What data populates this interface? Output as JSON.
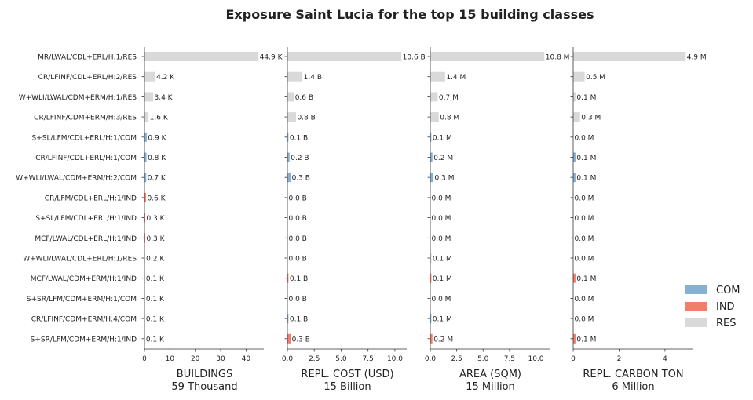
{
  "chart_data": {
    "type": "bar",
    "orientation": "horizontal",
    "title": "Exposure Saint Lucia for the top 15 building classes",
    "categories": [
      "MR/LWAL/CDL+ERL/H:1/RES",
      "CR/LFINF/CDL+ERL/H:2/RES",
      "W+WLI/LWAL/CDM+ERM/H:1/RES",
      "CR/LFINF/CDM+ERM/H:3/RES",
      "S+SL/LFM/CDL+ERL/H:1/COM",
      "CR/LFINF/CDL+ERL/H:1/COM",
      "W+WLI/LWAL/CDM+ERM/H:2/COM",
      "CR/LFM/CDL+ERL/H:1/IND",
      "S+SL/LFM/CDL+ERL/H:1/IND",
      "MCF/LWAL/CDL+ERL/H:1/IND",
      "W+WLI/LWAL/CDL+ERL/H:1/RES",
      "MCF/LWAL/CDM+ERM/H:1/IND",
      "S+SR/LFM/CDM+ERM/H:1/COM",
      "CR/LFINF/CDM+ERM/H:4/COM",
      "S+SR/LFM/CDM+ERM/H:1/IND"
    ],
    "occupancy": [
      "RES",
      "RES",
      "RES",
      "RES",
      "COM",
      "COM",
      "COM",
      "IND",
      "IND",
      "IND",
      "RES",
      "IND",
      "COM",
      "COM",
      "IND"
    ],
    "panels": [
      {
        "xlabel": "BUILDINGS",
        "total": "59 Thousand",
        "xlim": [
          0,
          47
        ],
        "xticks": [
          "0",
          "10",
          "20",
          "30",
          "40"
        ],
        "xtick_values": [
          0,
          10,
          20,
          30,
          40
        ],
        "values": [
          44.9,
          4.2,
          3.4,
          1.6,
          0.9,
          0.8,
          0.7,
          0.6,
          0.3,
          0.3,
          0.2,
          0.1,
          0.1,
          0.1,
          0.1
        ],
        "labels": [
          "44.9 K",
          "4.2 K",
          "3.4 K",
          "1.6 K",
          "0.9 K",
          "0.8 K",
          "0.7 K",
          "0.6 K",
          "0.3 K",
          "0.3 K",
          "0.2 K",
          "0.1 K",
          "0.1 K",
          "0.1 K",
          "0.1 K"
        ]
      },
      {
        "xlabel": "REPL. COST (USD)",
        "total": "15 Billion",
        "xlim": [
          0,
          11.1
        ],
        "xticks": [
          "0.0",
          "2.5",
          "5.0",
          "7.5",
          "10.0"
        ],
        "xtick_values": [
          0,
          2.5,
          5,
          7.5,
          10
        ],
        "values": [
          10.6,
          1.4,
          0.6,
          0.8,
          0.1,
          0.2,
          0.3,
          0.0,
          0.0,
          0.0,
          0.0,
          0.1,
          0.0,
          0.1,
          0.3
        ],
        "labels": [
          "10.6 B",
          "1.4 B",
          "0.6 B",
          "0.8 B",
          "0.1 B",
          "0.2 B",
          "0.3 B",
          "0.0 B",
          "0.0 B",
          "0.0 B",
          "0.0 B",
          "0.1 B",
          "0.0 B",
          "0.1 B",
          "0.3 B"
        ]
      },
      {
        "xlabel": "AREA (SQM)",
        "total": "15 Million",
        "xlim": [
          0,
          11.3
        ],
        "xticks": [
          "0.0",
          "2.5",
          "5.0",
          "7.5",
          "10.0"
        ],
        "xtick_values": [
          0,
          2.5,
          5,
          7.5,
          10
        ],
        "values": [
          10.8,
          1.4,
          0.7,
          0.8,
          0.1,
          0.2,
          0.3,
          0.0,
          0.0,
          0.0,
          0.1,
          0.1,
          0.0,
          0.1,
          0.2
        ],
        "labels": [
          "10.8 M",
          "1.4 M",
          "0.7 M",
          "0.8 M",
          "0.1 M",
          "0.2 M",
          "0.3 M",
          "0.0 M",
          "0.0 M",
          "0.0 M",
          "0.1 M",
          "0.1 M",
          "0.0 M",
          "0.1 M",
          "0.2 M"
        ]
      },
      {
        "xlabel": "REPL. CARBON TON",
        "total": "6 Million",
        "xlim": [
          0,
          5.2
        ],
        "xticks": [
          "0",
          "2",
          "4"
        ],
        "xtick_values": [
          0,
          2,
          4
        ],
        "values": [
          4.9,
          0.5,
          0.1,
          0.3,
          0.0,
          0.1,
          0.1,
          0.0,
          0.0,
          0.0,
          0.0,
          0.1,
          0.0,
          0.0,
          0.1
        ],
        "labels": [
          "4.9 M",
          "0.5 M",
          "0.1 M",
          "0.3 M",
          "0.0 M",
          "0.1 M",
          "0.1 M",
          "0.0 M",
          "0.0 M",
          "0.0 M",
          "0.0 M",
          "0.1 M",
          "0.0 M",
          "0.0 M",
          "0.1 M"
        ]
      }
    ],
    "legend": {
      "position": "bottom-right",
      "entries": [
        {
          "name": "COM",
          "color": "#86b0d1"
        },
        {
          "name": "IND",
          "color": "#f47d6a"
        },
        {
          "name": "RES",
          "color": "#d9d9d9"
        }
      ]
    },
    "grid": false
  }
}
